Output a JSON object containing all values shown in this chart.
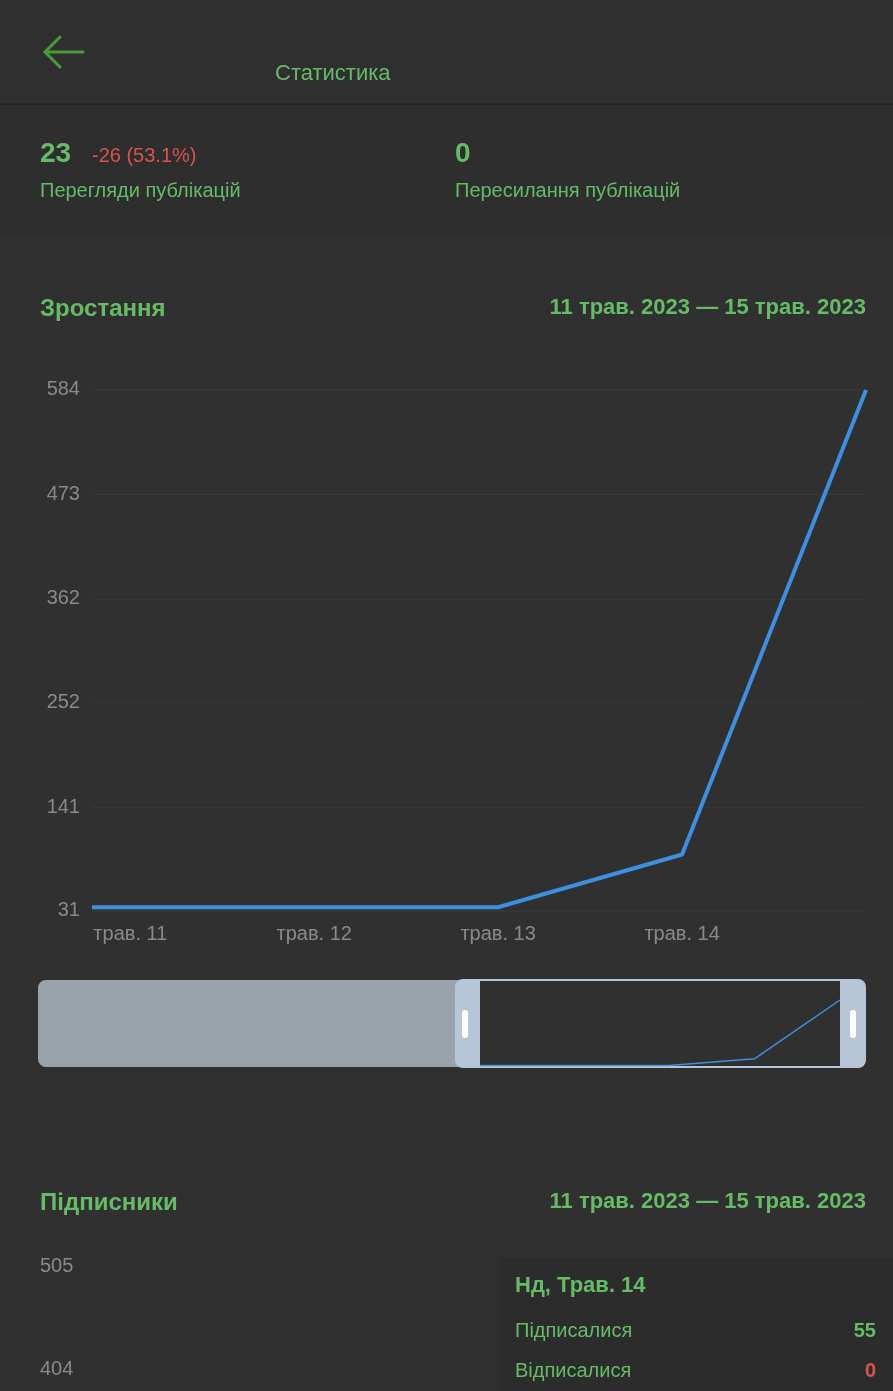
{
  "chart_data": [
    {
      "type": "other",
      "title": "Статистика",
      "annotations": [
        "23",
        "-26 (53.1%)",
        "Перегляди публікацій",
        "0",
        "Пересилання публікацій"
      ]
    },
    {
      "type": "line",
      "title": "Зростання",
      "subtitle": "11 трав. 2023 — 15 трав. 2023",
      "x": [
        "2023-05-10T19:00",
        "2023-05-11",
        "2023-05-12",
        "2023-05-13",
        "2023-05-14",
        "2023-05-15"
      ],
      "series": [
        {
          "color": "#3f8fe0",
          "values": [
            35,
            35,
            35,
            35,
            91,
            584
          ]
        }
      ],
      "xlim": [
        "2023-05-10T19:00",
        "2023-05-15"
      ],
      "xticks": [
        {
          "value": "2023-05-11",
          "label": "трав. 11"
        },
        {
          "value": "2023-05-12",
          "label": "трав. 12"
        },
        {
          "value": "2023-05-13",
          "label": "трав. 13"
        },
        {
          "value": "2023-05-14",
          "label": "трав. 14"
        }
      ],
      "ylim": [
        31,
        584
      ],
      "yticks": [
        31,
        141,
        252,
        362,
        473,
        584
      ],
      "grid": "y",
      "marker": "none"
    },
    {
      "type": "other",
      "title": "Підписники",
      "subtitle": "11 трав. 2023 — 15 трав. 2023",
      "annotations": [
        "505",
        "404",
        "Нд, Трав. 14",
        "Підписалися",
        "55",
        "Відписалися",
        "0"
      ]
    }
  ]
}
